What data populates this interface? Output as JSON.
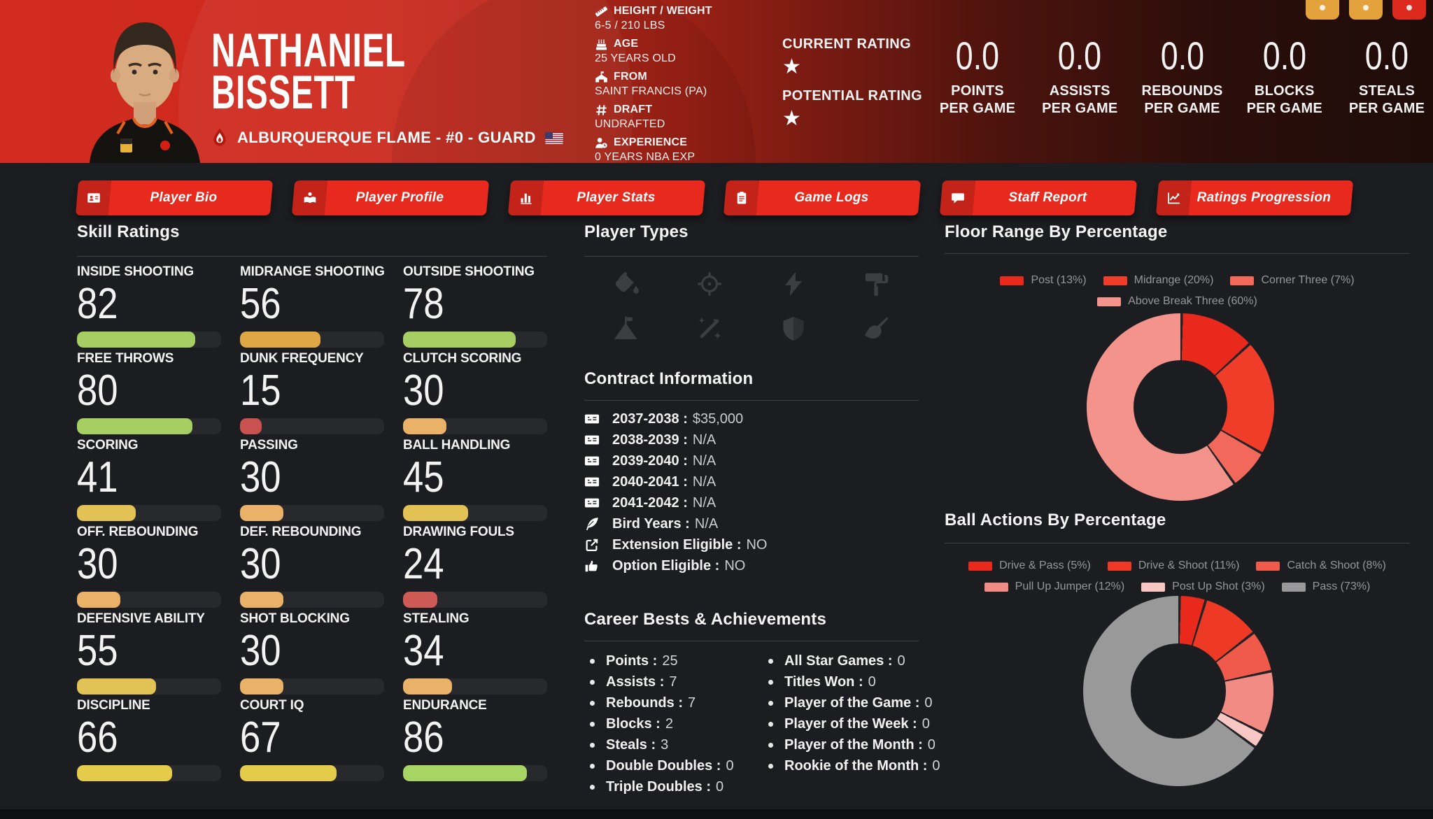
{
  "theme": {
    "accent_red": "#e82a1e",
    "page_bg": "#1c1d20",
    "header_red": "#d22b1f"
  },
  "window": {
    "controls": [
      {
        "name": "action-button-1",
        "color": "#e3a23c"
      },
      {
        "name": "action-button-2",
        "color": "#e3a23c"
      },
      {
        "name": "close-button",
        "color": "#dd2a1e"
      }
    ]
  },
  "header": {
    "first_name": "NATHANIEL",
    "last_name": "BISSETT",
    "team_line": "ALBURQUERQUE FLAME - #0 - GUARD",
    "info": [
      {
        "icon": "ruler-icon",
        "label": "HEIGHT / WEIGHT",
        "value": "6-5 / 210 LBS"
      },
      {
        "icon": "cake-icon",
        "label": "AGE",
        "value": "25 YEARS OLD"
      },
      {
        "icon": "school-icon",
        "label": "FROM",
        "value": "SAINT FRANCIS (PA)"
      },
      {
        "icon": "hash-icon",
        "label": "DRAFT",
        "value": "UNDRAFTED"
      },
      {
        "icon": "user-clock-icon",
        "label": "EXPERIENCE",
        "value": "0 YEARS NBA EXP"
      }
    ],
    "ratings": [
      {
        "label": "CURRENT RATING",
        "stars": 1
      },
      {
        "label": "POTENTIAL RATING",
        "stars": 1
      }
    ],
    "stats": [
      {
        "value": "0.0",
        "label": "POINTS",
        "sub": "PER GAME"
      },
      {
        "value": "0.0",
        "label": "ASSISTS",
        "sub": "PER GAME"
      },
      {
        "value": "0.0",
        "label": "REBOUNDS",
        "sub": "PER GAME"
      },
      {
        "value": "0.0",
        "label": "BLOCKS",
        "sub": "PER GAME"
      },
      {
        "value": "0.0",
        "label": "STEALS",
        "sub": "PER GAME"
      }
    ]
  },
  "nav": [
    {
      "icon": "id-card-icon",
      "label": "Player Bio"
    },
    {
      "icon": "book-reader-icon",
      "label": "Player Profile"
    },
    {
      "icon": "bar-chart-icon",
      "label": "Player Stats"
    },
    {
      "icon": "clipboard-icon",
      "label": "Game Logs"
    },
    {
      "icon": "comment-icon",
      "label": "Staff Report"
    },
    {
      "icon": "line-chart-icon",
      "label": "Ratings Progression"
    }
  ],
  "skills": {
    "title": "Skill Ratings",
    "items": [
      {
        "label": "INSIDE SHOOTING",
        "value": 82,
        "color": "#a6cf63"
      },
      {
        "label": "MIDRANGE SHOOTING",
        "value": 56,
        "color": "#dfa844"
      },
      {
        "label": "OUTSIDE SHOOTING",
        "value": 78,
        "color": "#a6cf63"
      },
      {
        "label": "FREE THROWS",
        "value": 80,
        "color": "#a6cf63"
      },
      {
        "label": "DUNK FREQUENCY",
        "value": 15,
        "color": "#c95150"
      },
      {
        "label": "CLUTCH SCORING",
        "value": 30,
        "color": "#eab269"
      },
      {
        "label": "SCORING",
        "value": 41,
        "color": "#e2c254"
      },
      {
        "label": "PASSING",
        "value": 30,
        "color": "#eab269"
      },
      {
        "label": "BALL HANDLING",
        "value": 45,
        "color": "#e2c254"
      },
      {
        "label": "OFF. REBOUNDING",
        "value": 30,
        "color": "#eab269"
      },
      {
        "label": "DEF. REBOUNDING",
        "value": 30,
        "color": "#eab269"
      },
      {
        "label": "DRAWING FOULS",
        "value": 24,
        "color": "#cd5a55"
      },
      {
        "label": "DEFENSIVE ABILITY",
        "value": 55,
        "color": "#e2c254"
      },
      {
        "label": "SHOT BLOCKING",
        "value": 30,
        "color": "#eab269"
      },
      {
        "label": "STEALING",
        "value": 34,
        "color": "#eab269"
      },
      {
        "label": "DISCIPLINE",
        "value": 66,
        "color": "#e4cb4a"
      },
      {
        "label": "COURT IQ",
        "value": 67,
        "color": "#e4cb4a"
      },
      {
        "label": "ENDURANCE",
        "value": 86,
        "color": "#a6d563"
      }
    ]
  },
  "player_types": {
    "title": "Player Types",
    "icons": [
      "fill-drip-icon",
      "crosshairs-icon",
      "bolt-icon",
      "paint-roller-icon",
      "mountain-flag-icon",
      "wand-sparkles-icon",
      "shield-half-icon",
      "broom-icon"
    ]
  },
  "contract": {
    "title": "Contract Information",
    "rows": [
      {
        "icon": "money-check-icon",
        "label": "2037-2038",
        "value": "$35,000"
      },
      {
        "icon": "money-check-icon",
        "label": "2038-2039",
        "value": "N/A"
      },
      {
        "icon": "money-check-icon",
        "label": "2039-2040",
        "value": "N/A"
      },
      {
        "icon": "money-check-icon",
        "label": "2040-2041",
        "value": "N/A"
      },
      {
        "icon": "money-check-icon",
        "label": "2041-2042",
        "value": "N/A"
      },
      {
        "icon": "feather-icon",
        "label": "Bird Years",
        "value": "N/A"
      },
      {
        "icon": "external-link-icon",
        "label": "Extension Eligible",
        "value": "NO"
      },
      {
        "icon": "thumbs-up-icon",
        "label": "Option Eligible",
        "value": "NO"
      }
    ]
  },
  "career": {
    "title": "Career Bests & Achievements",
    "left": [
      {
        "label": "Points",
        "value": "25"
      },
      {
        "label": "Assists",
        "value": "7"
      },
      {
        "label": "Rebounds",
        "value": "7"
      },
      {
        "label": "Blocks",
        "value": "2"
      },
      {
        "label": "Steals",
        "value": "3"
      },
      {
        "label": "Double Doubles",
        "value": "0"
      },
      {
        "label": "Triple Doubles",
        "value": "0"
      }
    ],
    "right": [
      {
        "label": "All Star Games",
        "value": "0"
      },
      {
        "label": "Titles Won",
        "value": "0"
      },
      {
        "label": "Player of the Game",
        "value": "0"
      },
      {
        "label": "Player of the Week",
        "value": "0"
      },
      {
        "label": "Player of the Month",
        "value": "0"
      },
      {
        "label": "Rookie of the Month",
        "value": "0"
      }
    ]
  },
  "chart_data": [
    {
      "type": "pie",
      "title": "Floor Range By Percentage",
      "hole": 0.5,
      "legend_position": "top",
      "series": [
        {
          "label": "Post",
          "value": 13,
          "color": "#e9291c"
        },
        {
          "label": "Midrange",
          "value": 20,
          "color": "#ef3d29"
        },
        {
          "label": "Corner Three",
          "value": 7,
          "color": "#f2685b"
        },
        {
          "label": "Above Break Three",
          "value": 60,
          "color": "#f4928c"
        }
      ]
    },
    {
      "type": "pie",
      "title": "Ball Actions By Percentage",
      "hole": 0.5,
      "legend_position": "top",
      "series": [
        {
          "label": "Drive & Pass",
          "value": 5,
          "color": "#e9291c"
        },
        {
          "label": "Drive & Shoot",
          "value": 11,
          "color": "#ee3a25"
        },
        {
          "label": "Catch & Shoot",
          "value": 8,
          "color": "#f05a4b"
        },
        {
          "label": "Pull Up Jumper",
          "value": 12,
          "color": "#f28b84"
        },
        {
          "label": "Post Up Shot",
          "value": 3,
          "color": "#f8c7c3"
        },
        {
          "label": "Pass",
          "value": 73,
          "color": "#999999"
        }
      ]
    }
  ]
}
